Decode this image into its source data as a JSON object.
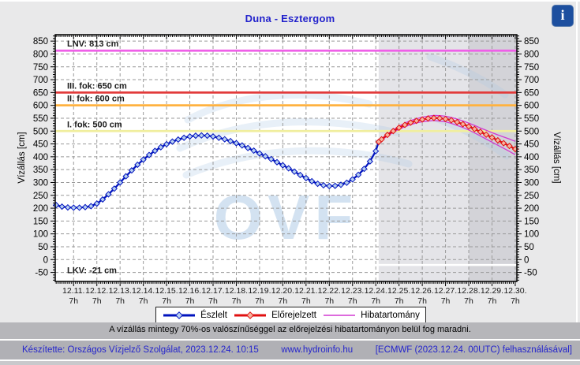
{
  "header": {
    "title": "Duna - Esztergom",
    "info_button_label": "i"
  },
  "note": "A vízállás mintegy 70%-os valószínűséggel az előrejelzési hibatartományon belül fog maradni.",
  "legend": {
    "items": [
      {
        "label": "Észlelt",
        "color": "#0013be",
        "marker_fill": "#b8d0f0",
        "style": "marker-line"
      },
      {
        "label": "Előrejelzett",
        "color": "#e01010",
        "marker_fill": "#f6b49e",
        "style": "marker-line"
      },
      {
        "label": "Hibatartomány",
        "color": "#d23ad2",
        "style": "line"
      }
    ]
  },
  "footer": {
    "credit": "Készítette: Országos Vízjelző Szolgálat, 2023.12.24. 10:15",
    "site": "www.hydroinfo.hu",
    "model_info": "[ECMWF (2023.12.24. 00UTC) felhasználásával]"
  },
  "chart_data": {
    "type": "line",
    "title": "Duna - Esztergom",
    "y_axis": {
      "label": "Vízállás [cm]",
      "unit": "cm",
      "range": [
        -85,
        875
      ],
      "ticks": [
        -50,
        0,
        50,
        100,
        150,
        200,
        250,
        300,
        350,
        400,
        450,
        500,
        550,
        600,
        650,
        700,
        750,
        800,
        850
      ],
      "minor_step": 10
    },
    "x_axis": {
      "tick_dates": [
        "12.11.",
        "12.12.",
        "12.13.",
        "12.14.",
        "12.15.",
        "12.16.",
        "12.17.",
        "12.18.",
        "12.19.",
        "12.20.",
        "12.21.",
        "12.22.",
        "12.23.",
        "12.24.",
        "12.25.",
        "12.26.",
        "12.27.",
        "12.28.",
        "12.29.",
        "12.30."
      ],
      "tick_sub_label": "7h",
      "range_days": [
        -0.79,
        19.07
      ],
      "minor_step_hours": 2
    },
    "reference_lines": [
      {
        "label": "LNV: 813 cm",
        "value": 813,
        "color": "#ef60e8"
      },
      {
        "label": "III. fok: 650 cm",
        "value": 650,
        "color": "#e23b3b"
      },
      {
        "label": "II. fok: 600 cm",
        "value": 600,
        "color": "#ffb240"
      },
      {
        "label": "I. fok: 500 cm",
        "value": 500,
        "color": "#f0ee9e"
      },
      {
        "label": "LKV: -21 cm",
        "value": -21,
        "color": "#ffffff"
      }
    ],
    "forecast_zones": [
      {
        "from": 13.125,
        "to": 17.0,
        "color": "#e4e4e8"
      },
      {
        "from": 17.0,
        "to": 19.07,
        "color": "#d3d3d8"
      }
    ],
    "watermark": {
      "text": "OVF",
      "color": "#a9c7e4"
    },
    "series": [
      {
        "name": "Észlelt",
        "role": "observed",
        "color": "#0013be",
        "marker_fill": "#b8d0f0",
        "x": [
          -0.75,
          -0.5,
          -0.25,
          0,
          0.25,
          0.5,
          0.75,
          1,
          1.25,
          1.5,
          1.75,
          2,
          2.25,
          2.5,
          2.75,
          3,
          3.25,
          3.5,
          3.75,
          4,
          4.25,
          4.5,
          4.75,
          5,
          5.25,
          5.5,
          5.75,
          6,
          6.25,
          6.5,
          6.75,
          7,
          7.25,
          7.5,
          7.75,
          8,
          8.25,
          8.5,
          8.75,
          9,
          9.25,
          9.5,
          9.75,
          10,
          10.25,
          10.5,
          10.75,
          11,
          11.25,
          11.5,
          11.75,
          12,
          12.25,
          12.5,
          12.75,
          13,
          13.125
        ],
        "values": [
          212,
          206,
          203,
          202,
          202,
          204,
          208,
          218,
          234,
          254,
          276,
          300,
          324,
          347,
          369,
          389,
          407,
          423,
          437,
          449,
          459,
          467,
          474,
          479,
          482,
          483,
          482,
          479,
          474,
          468,
          461,
          453,
          444,
          434,
          424,
          413,
          402,
          391,
          379,
          367,
          355,
          342,
          329,
          317,
          305,
          295,
          289,
          286,
          287,
          291,
          299,
          312,
          330,
          353,
          382,
          422,
          458
        ]
      },
      {
        "name": "Előrejelzett",
        "role": "forecast",
        "color": "#e01010",
        "marker_fill": "#f6b49e",
        "x": [
          13.125,
          13.25,
          13.5,
          13.75,
          14,
          14.25,
          14.5,
          14.75,
          15,
          15.25,
          15.5,
          15.75,
          16,
          16.25,
          16.5,
          16.75,
          17,
          17.25,
          17.5,
          17.75,
          18,
          18.25,
          18.5,
          18.75,
          19
        ],
        "values": [
          458,
          468,
          485,
          500,
          513,
          524,
          533,
          540,
          545,
          549,
          551,
          550,
          547,
          542,
          535,
          527,
          518,
          508,
          497,
          486,
          475,
          464,
          453,
          442,
          430
        ]
      },
      {
        "name": "Hibatartomány felső",
        "role": "band-upper",
        "color": "#d23ad2",
        "x": [
          13.125,
          13.25,
          13.5,
          13.75,
          14,
          14.25,
          14.5,
          14.75,
          15,
          15.25,
          15.5,
          15.75,
          16,
          16.25,
          16.5,
          16.75,
          17,
          17.25,
          17.5,
          17.75,
          18,
          18.25,
          18.5,
          18.75,
          19
        ],
        "values": [
          460,
          471,
          489,
          505,
          519,
          531,
          541,
          548,
          554,
          558,
          561,
          560,
          558,
          553,
          547,
          539,
          531,
          522,
          512,
          503,
          494,
          485,
          477,
          469,
          460
        ]
      },
      {
        "name": "Hibatartomány alsó",
        "role": "band-lower",
        "color": "#d23ad2",
        "x": [
          13.125,
          13.25,
          13.5,
          13.75,
          14,
          14.25,
          14.5,
          14.75,
          15,
          15.25,
          15.5,
          15.75,
          16,
          16.25,
          16.5,
          16.75,
          17,
          17.25,
          17.5,
          17.75,
          18,
          18.25,
          18.5,
          18.75,
          19
        ],
        "values": [
          456,
          465,
          481,
          495,
          507,
          517,
          525,
          532,
          536,
          539,
          541,
          539,
          536,
          530,
          522,
          514,
          504,
          493,
          481,
          469,
          457,
          445,
          433,
          421,
          408
        ]
      }
    ]
  }
}
